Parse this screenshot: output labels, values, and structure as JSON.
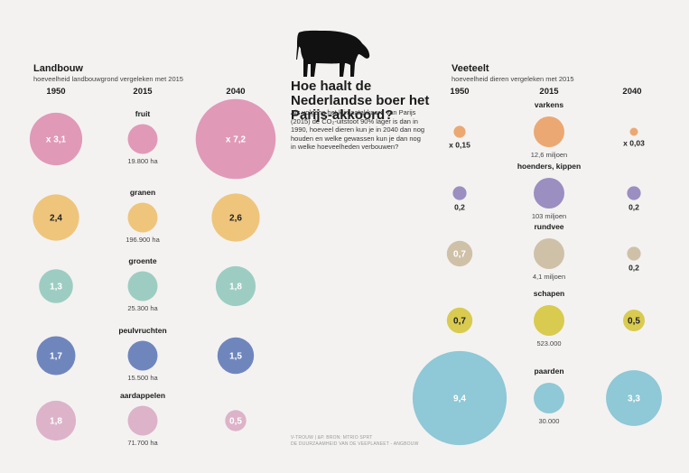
{
  "title": "Hoe haalt de Nederlandse boer het Parijs-akkoord?",
  "intro": "Als volgens het klimaatakkoord van Parijs (2015) de CO₂-uitstoot 90% lager is dan in 1990, hoeveel dieren kun je in 2040 dan nog houden en welke gewassen kun je dan nog in welke hoeveelheden verbouwen?",
  "credit_line1": "V-TROUW | &P. BRON: MTRIO SPRT",
  "credit_line2": "DE DUURZAAMHEID VAN DE VEEPLANEET - ANGBOUW",
  "icons": {
    "cow": "cow-silhouette-icon"
  },
  "colors": {
    "background": "#f3f2f1",
    "fruit": "#e199b8",
    "granen": "#efc57c",
    "groente": "#9dcdc2",
    "peulvruchten": "#6f86bd",
    "aardappelen": "#ddb3c9",
    "varkens": "#eca872",
    "hoenders": "#9b8ec1",
    "rundvee": "#cfc1a8",
    "schapen": "#d9cb4f",
    "paarden": "#8fc8d6"
  },
  "chart_data": [
    {
      "type": "bubble",
      "title": "Landbouw",
      "subtitle": "hoeveelheid landbouwgrond vergeleken met 2015",
      "columns": [
        "1950",
        "2015",
        "2040"
      ],
      "rows": [
        {
          "name": "fruit",
          "color_key": "fruit",
          "base_label": "19.800 ha",
          "values": [
            3.1,
            1,
            7.2
          ],
          "labels": [
            "x 3,1",
            "",
            "x 7,2"
          ]
        },
        {
          "name": "granen",
          "color_key": "granen",
          "base_label": "196.900 ha",
          "values": [
            2.4,
            1,
            2.6
          ],
          "labels": [
            "2,4",
            "",
            "2,6"
          ]
        },
        {
          "name": "groente",
          "color_key": "groente",
          "base_label": "25.300 ha",
          "values": [
            1.3,
            1,
            1.8
          ],
          "labels": [
            "1,3",
            "",
            "1,8"
          ]
        },
        {
          "name": "peulvruchten",
          "color_key": "peulvruchten",
          "base_label": "15.500 ha",
          "values": [
            1.7,
            1,
            1.5
          ],
          "labels": [
            "1,7",
            "",
            "1,5"
          ]
        },
        {
          "name": "aardappelen",
          "color_key": "aardappelen",
          "base_label": "71.700 ha",
          "values": [
            1.8,
            1,
            0.5
          ],
          "labels": [
            "1,8",
            "",
            "0,5"
          ]
        }
      ]
    },
    {
      "type": "bubble",
      "title": "Veeteelt",
      "subtitle": "hoeveelheid dieren vergeleken met 2015",
      "columns": [
        "1950",
        "2015",
        "2040"
      ],
      "rows": [
        {
          "name": "varkens",
          "color_key": "varkens",
          "base_label": "12,6 miljoen",
          "values": [
            0.15,
            1,
            0.03
          ],
          "labels": [
            "x 0,15",
            "",
            "x 0,03"
          ]
        },
        {
          "name": "hoenders, kippen",
          "color_key": "hoenders",
          "base_label": "103 miljoen",
          "values": [
            0.2,
            1,
            0.2
          ],
          "labels": [
            "0,2",
            "",
            "0,2"
          ]
        },
        {
          "name": "rundvee",
          "color_key": "rundvee",
          "base_label": "4,1 miljoen",
          "values": [
            0.7,
            1,
            0.2
          ],
          "labels": [
            "0,7",
            "",
            "0,2"
          ]
        },
        {
          "name": "schapen",
          "color_key": "schapen",
          "base_label": "523.000",
          "values": [
            0.7,
            1,
            0.5
          ],
          "labels": [
            "0,7",
            "",
            "0,5"
          ]
        },
        {
          "name": "paarden",
          "color_key": "paarden",
          "base_label": "30.000",
          "values": [
            9.4,
            1,
            3.3
          ],
          "labels": [
            "9,4",
            "",
            "3,3"
          ]
        }
      ]
    }
  ]
}
